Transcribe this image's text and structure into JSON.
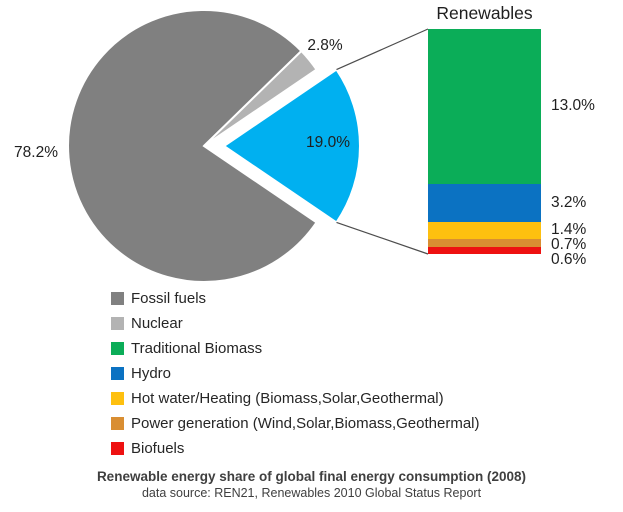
{
  "chart_data": {
    "type": "pie",
    "variant": "pie-with-breakout-stacked-bar",
    "title": "Renewable energy share of global final energy consumption (2008)",
    "source": "data source: REN21, Renewables 2010 Global Status Report",
    "pie": {
      "slices": [
        {
          "label": "Fossil fuels",
          "value": 78.2,
          "display": "78.2%",
          "color": "#808080",
          "exploded": false
        },
        {
          "label": "Nuclear",
          "value": 2.8,
          "display": "2.8%",
          "color": "#B3B3B3",
          "exploded": false
        },
        {
          "label": "Renewables",
          "value": 19.0,
          "display": "19.0%",
          "color": "#00B0F0",
          "exploded": true
        }
      ]
    },
    "breakout_bar": {
      "title": "Renewables",
      "segments": [
        {
          "label": "Traditional Biomass",
          "value": 13.0,
          "display": "13.0%",
          "color": "#0BAD58"
        },
        {
          "label": "Hydro",
          "value": 3.2,
          "display": "3.2%",
          "color": "#0B72C2"
        },
        {
          "label": "Hot water/Heating (Biomass,Solar,Geothermal)",
          "value": 1.4,
          "display": "1.4%",
          "color": "#FEC00F"
        },
        {
          "label": "Power generation (Wind,Solar,Biomass,Geothermal)",
          "value": 0.7,
          "display": "0.7%",
          "color": "#D98E32"
        },
        {
          "label": "Biofuels",
          "value": 0.6,
          "display": "0.6%",
          "color": "#EE1111"
        }
      ]
    },
    "legend": {
      "position": "bottom-left",
      "items": [
        {
          "label": "Fossil fuels",
          "color": "#808080"
        },
        {
          "label": "Nuclear",
          "color": "#B3B3B3"
        },
        {
          "label": "Traditional Biomass",
          "color": "#0BAD58"
        },
        {
          "label": "Hydro",
          "color": "#0B72C2"
        },
        {
          "label": "Hot water/Heating (Biomass,Solar,Geothermal)",
          "color": "#FEC00F"
        },
        {
          "label": "Power generation (Wind,Solar,Biomass,Geothermal)",
          "color": "#D98E32"
        },
        {
          "label": "Biofuels",
          "color": "#EE1111"
        }
      ]
    }
  }
}
